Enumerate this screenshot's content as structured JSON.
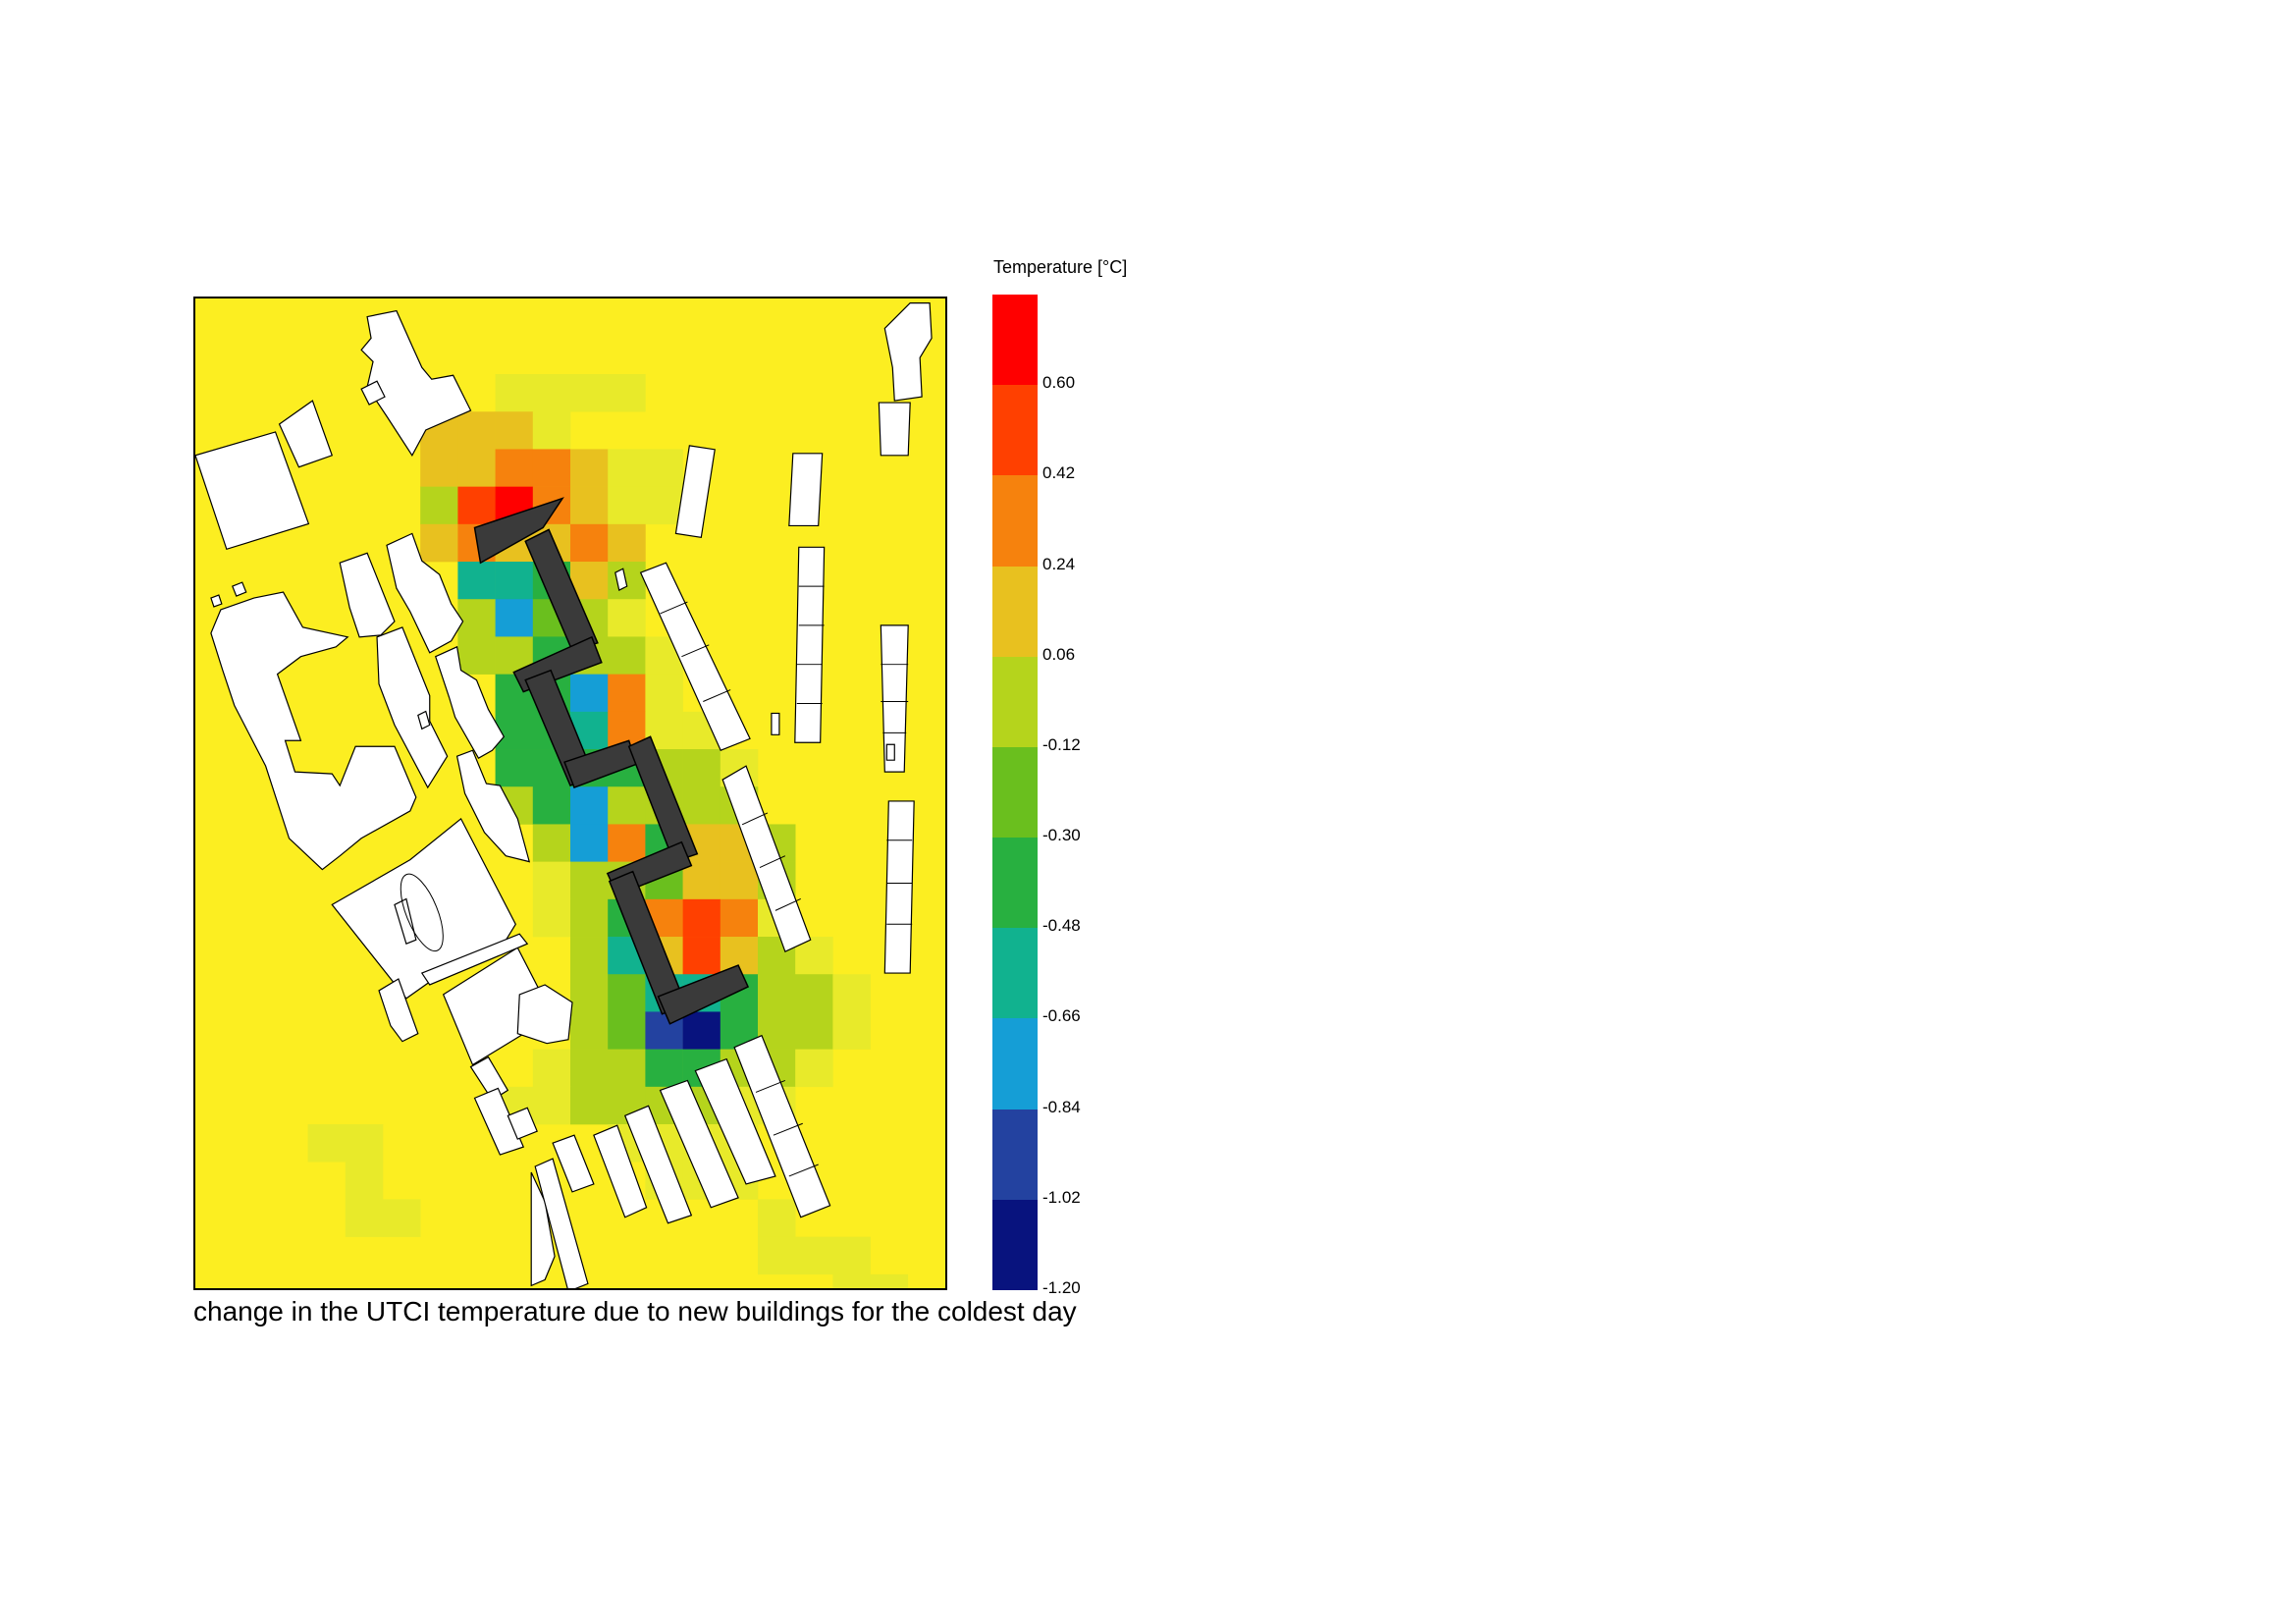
{
  "caption": "change in the UTCI temperature due to new buildings for the coldest day",
  "legend": {
    "title": "Temperature [°C]",
    "segment_colors": [
      "#ff0000",
      "#ff4000",
      "#f6820d",
      "#e8c11f",
      "#b5d41c",
      "#6abf1e",
      "#28b040",
      "#11b28f",
      "#159ed6",
      "#2342a0",
      "#08137e"
    ],
    "labels": [
      "0.60",
      "0.42",
      "0.24",
      "0.06",
      "-0.12",
      "-0.30",
      "-0.48",
      "-0.66",
      "-0.84",
      "-1.02",
      "-1.20"
    ]
  },
  "map": {
    "background_color": "#fcee21",
    "building_fill": "#ffffff",
    "new_building_fill": "#3a3a3a",
    "heat_cells": [
      {
        "row": 2,
        "col": 8,
        "value": 0.0
      },
      {
        "row": 2,
        "col": 9,
        "value": 0.0
      },
      {
        "row": 2,
        "col": 10,
        "value": 0.0
      },
      {
        "row": 2,
        "col": 11,
        "value": 0.0
      },
      {
        "row": 3,
        "col": 6,
        "value": 0.12
      },
      {
        "row": 3,
        "col": 7,
        "value": 0.22
      },
      {
        "row": 3,
        "col": 8,
        "value": 0.12
      },
      {
        "row": 3,
        "col": 9,
        "value": 0.0
      },
      {
        "row": 4,
        "col": 6,
        "value": 0.12
      },
      {
        "row": 4,
        "col": 7,
        "value": 0.24
      },
      {
        "row": 4,
        "col": 8,
        "value": 0.35
      },
      {
        "row": 4,
        "col": 9,
        "value": 0.3
      },
      {
        "row": 4,
        "col": 10,
        "value": 0.18
      },
      {
        "row": 4,
        "col": 11,
        "value": 0.0
      },
      {
        "row": 4,
        "col": 12,
        "value": 0.0
      },
      {
        "row": 5,
        "col": 6,
        "value": 0.06
      },
      {
        "row": 5,
        "col": 7,
        "value": 0.5
      },
      {
        "row": 5,
        "col": 8,
        "value": 0.65
      },
      {
        "row": 5,
        "col": 9,
        "value": 0.42
      },
      {
        "row": 5,
        "col": 10,
        "value": 0.12
      },
      {
        "row": 5,
        "col": 11,
        "value": 0.0
      },
      {
        "row": 5,
        "col": 12,
        "value": 0.0
      },
      {
        "row": 6,
        "col": 6,
        "value": 0.12
      },
      {
        "row": 6,
        "col": 7,
        "value": 0.3
      },
      {
        "row": 6,
        "col": 8,
        "value": 0.1
      },
      {
        "row": 6,
        "col": 9,
        "value": 0.12
      },
      {
        "row": 6,
        "col": 10,
        "value": 0.35
      },
      {
        "row": 6,
        "col": 11,
        "value": 0.12
      },
      {
        "row": 7,
        "col": 7,
        "value": -0.55
      },
      {
        "row": 7,
        "col": 8,
        "value": -0.6
      },
      {
        "row": 7,
        "col": 9,
        "value": -0.3
      },
      {
        "row": 7,
        "col": 10,
        "value": 0.12
      },
      {
        "row": 7,
        "col": 11,
        "value": -0.05
      },
      {
        "row": 8,
        "col": 7,
        "value": -0.1
      },
      {
        "row": 8,
        "col": 8,
        "value": -0.7
      },
      {
        "row": 8,
        "col": 9,
        "value": -0.2
      },
      {
        "row": 8,
        "col": 10,
        "value": -0.05
      },
      {
        "row": 8,
        "col": 11,
        "value": 0.0
      },
      {
        "row": 9,
        "col": 7,
        "value": -0.05
      },
      {
        "row": 9,
        "col": 8,
        "value": -0.1
      },
      {
        "row": 9,
        "col": 9,
        "value": -0.35
      },
      {
        "row": 9,
        "col": 10,
        "value": -0.1
      },
      {
        "row": 9,
        "col": 11,
        "value": -0.1
      },
      {
        "row": 9,
        "col": 12,
        "value": 0.0
      },
      {
        "row": 10,
        "col": 8,
        "value": -0.35
      },
      {
        "row": 10,
        "col": 9,
        "value": -0.4
      },
      {
        "row": 10,
        "col": 10,
        "value": -0.7
      },
      {
        "row": 10,
        "col": 11,
        "value": 0.3
      },
      {
        "row": 10,
        "col": 12,
        "value": 0.0
      },
      {
        "row": 11,
        "col": 8,
        "value": -0.35
      },
      {
        "row": 11,
        "col": 9,
        "value": -0.3
      },
      {
        "row": 11,
        "col": 10,
        "value": -0.5
      },
      {
        "row": 11,
        "col": 11,
        "value": 0.3
      },
      {
        "row": 11,
        "col": 12,
        "value": 0.0
      },
      {
        "row": 11,
        "col": 13,
        "value": 0.0
      },
      {
        "row": 12,
        "col": 8,
        "value": -0.35
      },
      {
        "row": 12,
        "col": 9,
        "value": -0.3
      },
      {
        "row": 12,
        "col": 10,
        "value": -0.45
      },
      {
        "row": 12,
        "col": 11,
        "value": -0.4
      },
      {
        "row": 12,
        "col": 12,
        "value": 0.06
      },
      {
        "row": 12,
        "col": 13,
        "value": -0.05
      },
      {
        "row": 12,
        "col": 14,
        "value": 0.0
      },
      {
        "row": 13,
        "col": 8,
        "value": -0.1
      },
      {
        "row": 13,
        "col": 9,
        "value": -0.35
      },
      {
        "row": 13,
        "col": 10,
        "value": -0.7
      },
      {
        "row": 13,
        "col": 11,
        "value": 0.06
      },
      {
        "row": 13,
        "col": 12,
        "value": -0.05
      },
      {
        "row": 13,
        "col": 13,
        "value": 0.06
      },
      {
        "row": 13,
        "col": 14,
        "value": 0.06
      },
      {
        "row": 14,
        "col": 9,
        "value": 0.06
      },
      {
        "row": 14,
        "col": 10,
        "value": -0.7
      },
      {
        "row": 14,
        "col": 11,
        "value": 0.42
      },
      {
        "row": 14,
        "col": 12,
        "value": -0.45
      },
      {
        "row": 14,
        "col": 13,
        "value": 0.24
      },
      {
        "row": 14,
        "col": 14,
        "value": 0.24
      },
      {
        "row": 14,
        "col": 15,
        "value": 0.06
      },
      {
        "row": 15,
        "col": 9,
        "value": 0.0
      },
      {
        "row": 15,
        "col": 10,
        "value": -0.05
      },
      {
        "row": 15,
        "col": 11,
        "value": -0.1
      },
      {
        "row": 15,
        "col": 12,
        "value": -0.15
      },
      {
        "row": 15,
        "col": 13,
        "value": 0.24
      },
      {
        "row": 15,
        "col": 14,
        "value": 0.24
      },
      {
        "row": 15,
        "col": 15,
        "value": 0.06
      },
      {
        "row": 16,
        "col": 9,
        "value": 0.0
      },
      {
        "row": 16,
        "col": 10,
        "value": -0.05
      },
      {
        "row": 16,
        "col": 11,
        "value": -0.4
      },
      {
        "row": 16,
        "col": 12,
        "value": 0.3
      },
      {
        "row": 16,
        "col": 13,
        "value": 0.5
      },
      {
        "row": 16,
        "col": 14,
        "value": 0.3
      },
      {
        "row": 16,
        "col": 15,
        "value": 0.0
      },
      {
        "row": 17,
        "col": 10,
        "value": -0.05
      },
      {
        "row": 17,
        "col": 11,
        "value": -0.5
      },
      {
        "row": 17,
        "col": 12,
        "value": 0.24
      },
      {
        "row": 17,
        "col": 13,
        "value": 0.45
      },
      {
        "row": 17,
        "col": 14,
        "value": 0.12
      },
      {
        "row": 17,
        "col": 15,
        "value": -0.05
      },
      {
        "row": 17,
        "col": 16,
        "value": 0.0
      },
      {
        "row": 18,
        "col": 10,
        "value": -0.05
      },
      {
        "row": 18,
        "col": 11,
        "value": -0.2
      },
      {
        "row": 18,
        "col": 12,
        "value": -0.55
      },
      {
        "row": 18,
        "col": 13,
        "value": -0.55
      },
      {
        "row": 18,
        "col": 14,
        "value": -0.45
      },
      {
        "row": 18,
        "col": 15,
        "value": -0.1
      },
      {
        "row": 18,
        "col": 16,
        "value": -0.05
      },
      {
        "row": 18,
        "col": 17,
        "value": 0.0
      },
      {
        "row": 19,
        "col": 10,
        "value": -0.05
      },
      {
        "row": 19,
        "col": 11,
        "value": -0.2
      },
      {
        "row": 19,
        "col": 12,
        "value": -1.0
      },
      {
        "row": 19,
        "col": 13,
        "value": -1.2
      },
      {
        "row": 19,
        "col": 14,
        "value": -0.35
      },
      {
        "row": 19,
        "col": 15,
        "value": -0.1
      },
      {
        "row": 19,
        "col": 16,
        "value": -0.05
      },
      {
        "row": 19,
        "col": 17,
        "value": 0.0
      },
      {
        "row": 20,
        "col": 9,
        "value": 0.0
      },
      {
        "row": 20,
        "col": 10,
        "value": -0.05
      },
      {
        "row": 20,
        "col": 11,
        "value": -0.1
      },
      {
        "row": 20,
        "col": 12,
        "value": -0.3
      },
      {
        "row": 20,
        "col": 13,
        "value": -0.3
      },
      {
        "row": 20,
        "col": 14,
        "value": -0.1
      },
      {
        "row": 20,
        "col": 15,
        "value": -0.05
      },
      {
        "row": 20,
        "col": 16,
        "value": 0.0
      },
      {
        "row": 21,
        "col": 8,
        "value": 0.0
      },
      {
        "row": 21,
        "col": 9,
        "value": 0.0
      },
      {
        "row": 21,
        "col": 10,
        "value": -0.05
      },
      {
        "row": 21,
        "col": 11,
        "value": -0.05
      },
      {
        "row": 21,
        "col": 12,
        "value": -0.05
      },
      {
        "row": 21,
        "col": 13,
        "value": -0.05
      },
      {
        "row": 21,
        "col": 14,
        "value": 0.0
      },
      {
        "row": 21,
        "col": 15,
        "value": 0.0
      },
      {
        "row": 22,
        "col": 3,
        "value": 0.0
      },
      {
        "row": 22,
        "col": 4,
        "value": 0.0
      },
      {
        "row": 22,
        "col": 11,
        "value": 0.0
      },
      {
        "row": 22,
        "col": 12,
        "value": 0.0
      },
      {
        "row": 22,
        "col": 13,
        "value": 0.0
      },
      {
        "row": 22,
        "col": 14,
        "value": 0.0
      },
      {
        "row": 23,
        "col": 4,
        "value": 0.0
      },
      {
        "row": 23,
        "col": 12,
        "value": 0.0
      },
      {
        "row": 23,
        "col": 13,
        "value": 0.0
      },
      {
        "row": 23,
        "col": 14,
        "value": 0.0
      },
      {
        "row": 24,
        "col": 4,
        "value": 0.0
      },
      {
        "row": 24,
        "col": 5,
        "value": 0.0
      },
      {
        "row": 24,
        "col": 15,
        "value": 0.0
      },
      {
        "row": 25,
        "col": 15,
        "value": 0.0
      },
      {
        "row": 25,
        "col": 16,
        "value": 0.0
      },
      {
        "row": 25,
        "col": 17,
        "value": 0.0
      },
      {
        "row": 26,
        "col": 17,
        "value": 0.0
      },
      {
        "row": 26,
        "col": 18,
        "value": 0.0
      }
    ]
  }
}
